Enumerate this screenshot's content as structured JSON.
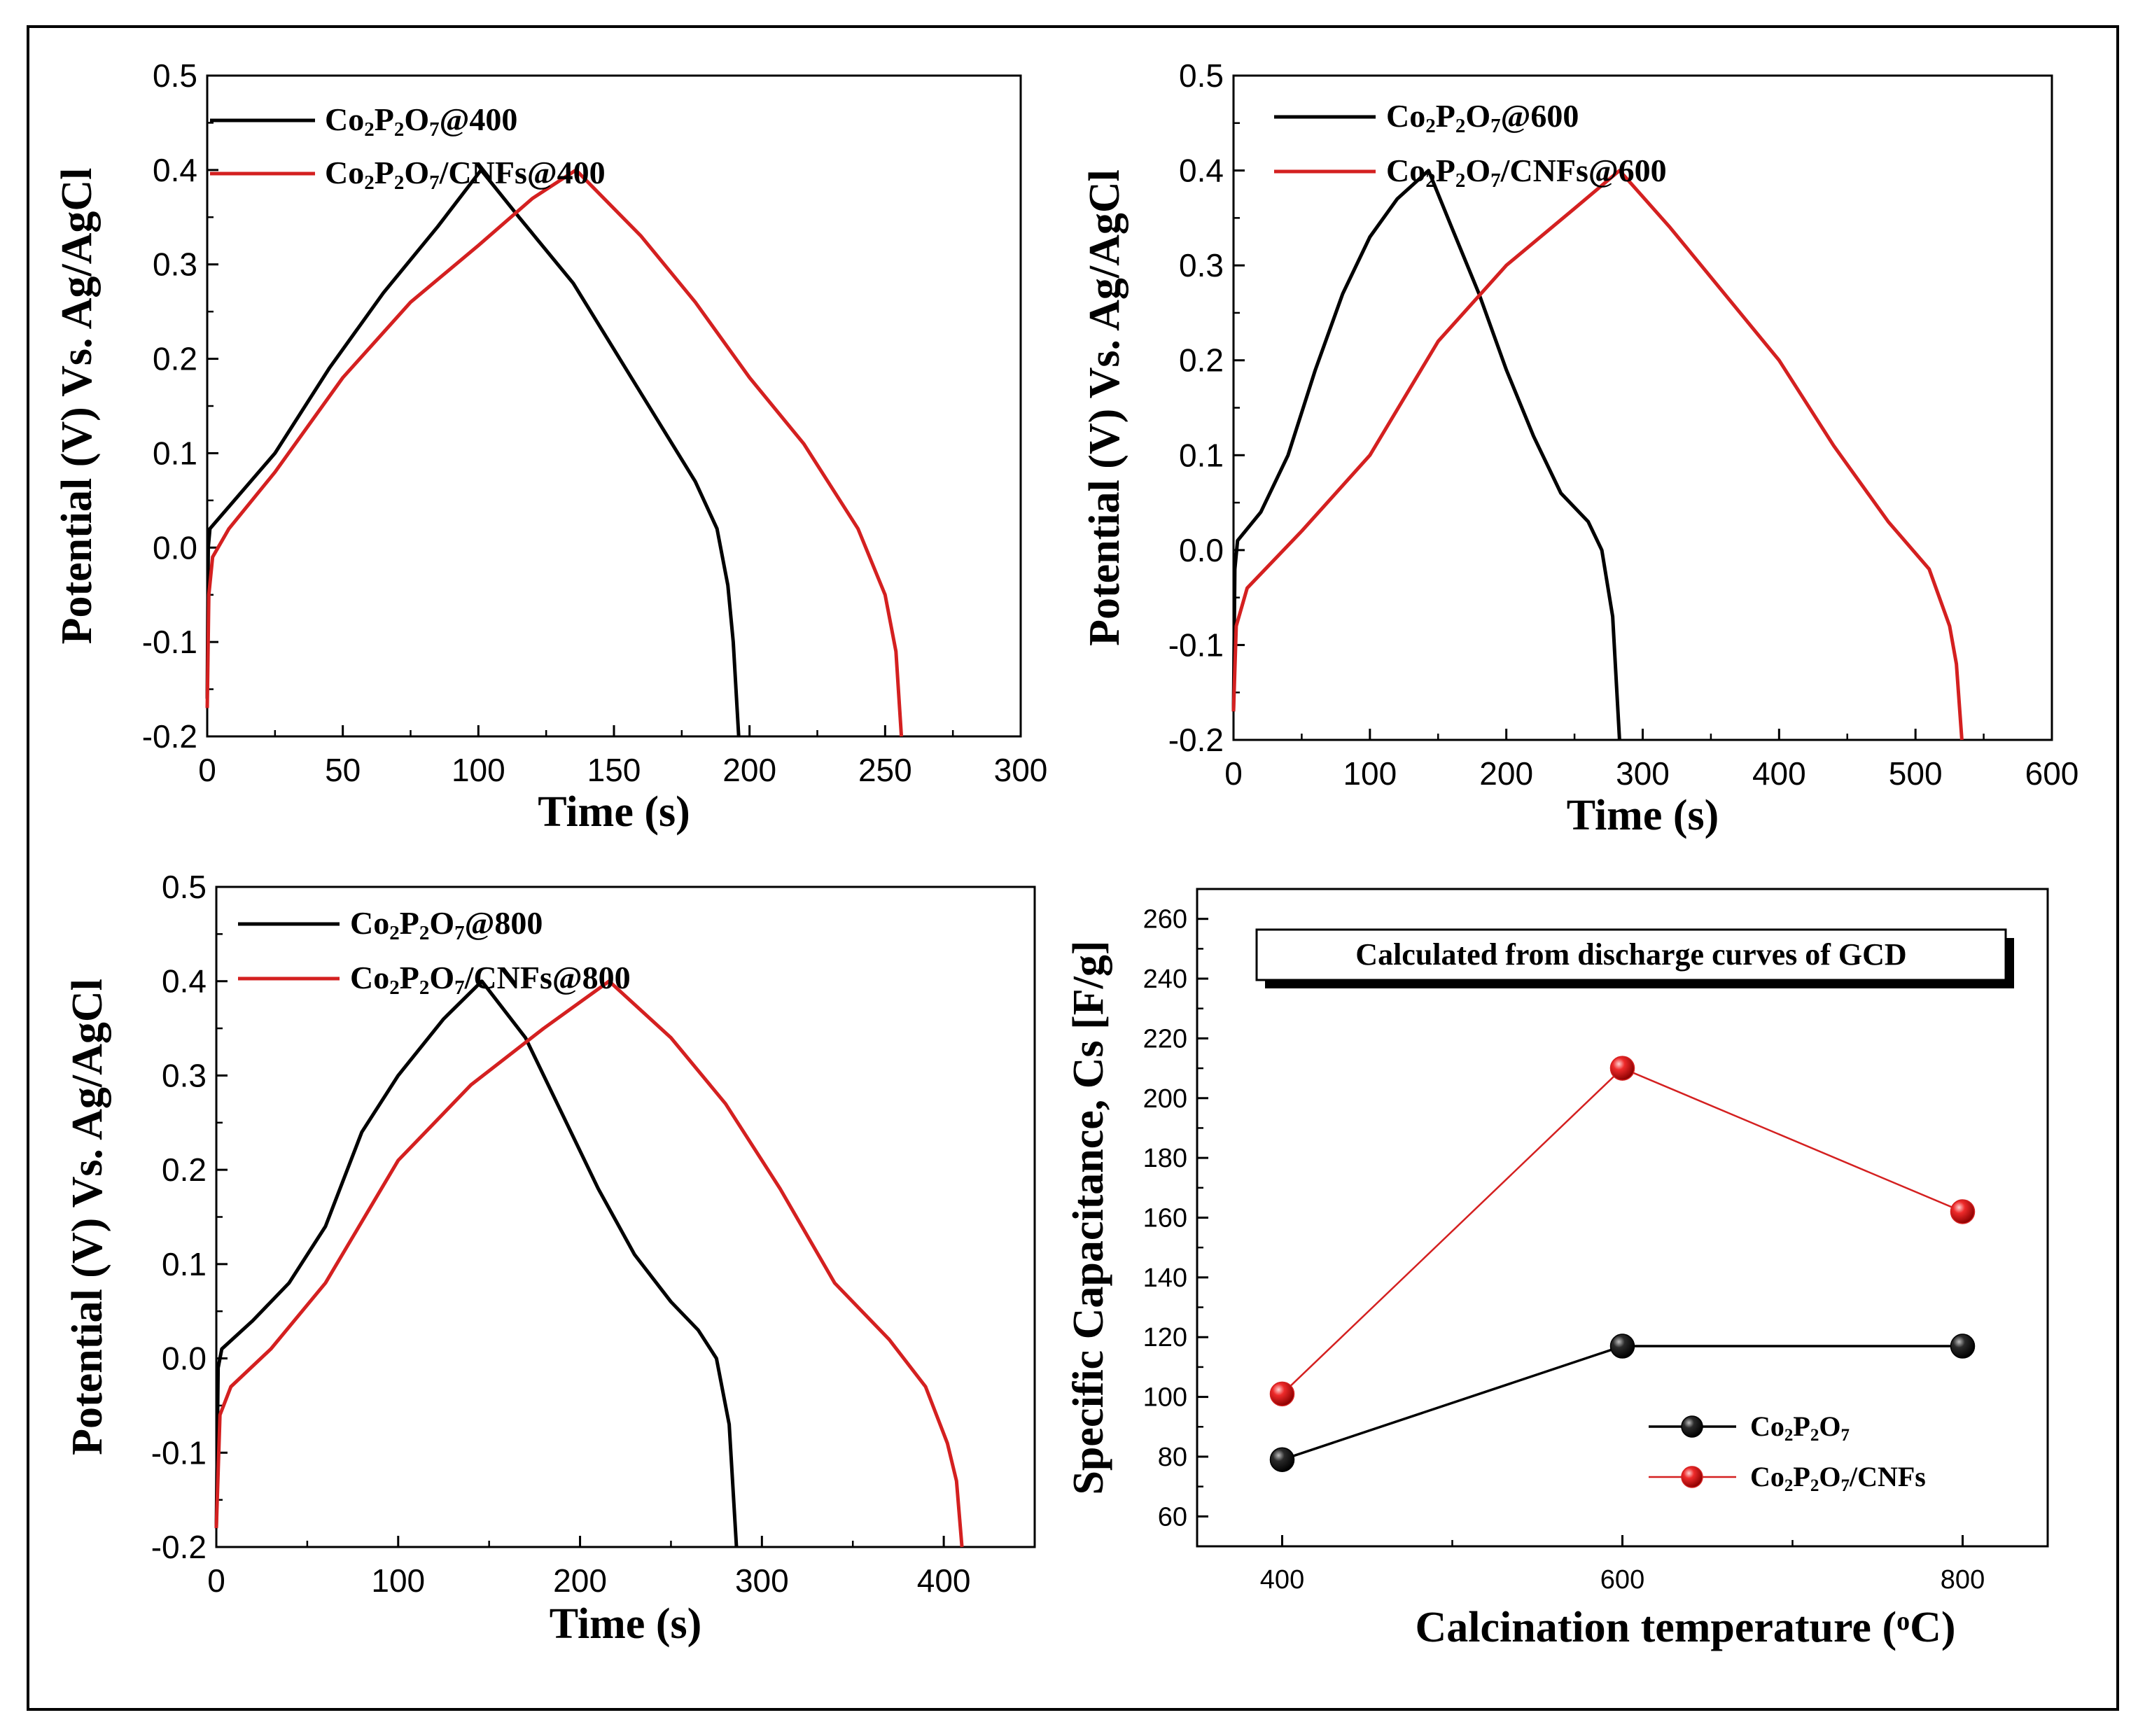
{
  "chart_data": [
    {
      "type": "line",
      "xlabel": "Time (s)",
      "ylabel": "Potential (V) Vs. Ag/AgCl",
      "xlim": [
        0,
        300
      ],
      "ylim": [
        -0.2,
        0.5
      ],
      "xticks": [
        0,
        50,
        100,
        150,
        200,
        250,
        300
      ],
      "yticks": [
        "-0.2",
        "-0.1",
        "0.0",
        "0.1",
        "0.2",
        "0.3",
        "0.4",
        "0.5"
      ],
      "legend_position": "top-left",
      "series": [
        {
          "name": "Co2P2O7@400",
          "label_parts": [
            [
              "Co",
              "n"
            ],
            [
              "2",
              "sub"
            ],
            [
              "P",
              "n"
            ],
            [
              "2",
              "sub"
            ],
            [
              "O",
              "n"
            ],
            [
              "7",
              "sub"
            ],
            [
              "@400",
              "n"
            ]
          ],
          "color": "#000000",
          "points": [
            [
              0,
              -0.16
            ],
            [
              0.4,
              0.0
            ],
            [
              1,
              0.02
            ],
            [
              10,
              0.05
            ],
            [
              25,
              0.1
            ],
            [
              45,
              0.19
            ],
            [
              65,
              0.27
            ],
            [
              85,
              0.34
            ],
            [
              101,
              0.4
            ],
            [
              115,
              0.35
            ],
            [
              135,
              0.28
            ],
            [
              150,
              0.21
            ],
            [
              165,
              0.14
            ],
            [
              180,
              0.07
            ],
            [
              188,
              0.02
            ],
            [
              192,
              -0.04
            ],
            [
              194,
              -0.1
            ],
            [
              196,
              -0.2
            ]
          ]
        },
        {
          "name": "Co2P2O7/CNFs@400",
          "label_parts": [
            [
              "Co",
              "n"
            ],
            [
              "2",
              "sub"
            ],
            [
              "P",
              "n"
            ],
            [
              "2",
              "sub"
            ],
            [
              "O",
              "n"
            ],
            [
              "7",
              "sub"
            ],
            [
              "/CNFs@400",
              "n"
            ]
          ],
          "color": "#D42020",
          "points": [
            [
              0,
              -0.17
            ],
            [
              0.6,
              -0.05
            ],
            [
              2,
              -0.01
            ],
            [
              8,
              0.02
            ],
            [
              25,
              0.08
            ],
            [
              50,
              0.18
            ],
            [
              75,
              0.26
            ],
            [
              100,
              0.32
            ],
            [
              120,
              0.37
            ],
            [
              136,
              0.4
            ],
            [
              160,
              0.33
            ],
            [
              180,
              0.26
            ],
            [
              200,
              0.18
            ],
            [
              220,
              0.11
            ],
            [
              240,
              0.02
            ],
            [
              250,
              -0.05
            ],
            [
              254,
              -0.11
            ],
            [
              256,
              -0.2
            ]
          ]
        }
      ]
    },
    {
      "type": "line",
      "xlabel": "Time (s)",
      "ylabel": "Potential (V) Vs. Ag/AgCl",
      "xlim": [
        0,
        600
      ],
      "ylim": [
        -0.2,
        0.5
      ],
      "xticks": [
        0,
        100,
        200,
        300,
        400,
        500,
        600
      ],
      "yticks": [
        "-0.2",
        "-0.1",
        "0.0",
        "0.1",
        "0.2",
        "0.3",
        "0.4",
        "0.5"
      ],
      "legend_position": "top-left",
      "series": [
        {
          "name": "Co2P2O7@600",
          "label_parts": [
            [
              "Co",
              "n"
            ],
            [
              "2",
              "sub"
            ],
            [
              "P",
              "n"
            ],
            [
              "2",
              "sub"
            ],
            [
              "O",
              "n"
            ],
            [
              "7",
              "sub"
            ],
            [
              "@600",
              "n"
            ]
          ],
          "color": "#000000",
          "points": [
            [
              0,
              -0.17
            ],
            [
              1,
              -0.02
            ],
            [
              3,
              0.01
            ],
            [
              20,
              0.04
            ],
            [
              40,
              0.1
            ],
            [
              60,
              0.19
            ],
            [
              80,
              0.27
            ],
            [
              100,
              0.33
            ],
            [
              120,
              0.37
            ],
            [
              143,
              0.4
            ],
            [
              160,
              0.34
            ],
            [
              180,
              0.27
            ],
            [
              200,
              0.19
            ],
            [
              220,
              0.12
            ],
            [
              240,
              0.06
            ],
            [
              260,
              0.03
            ],
            [
              270,
              0.0
            ],
            [
              278,
              -0.07
            ],
            [
              283,
              -0.2
            ]
          ]
        },
        {
          "name": "Co2P2O7/CNFs@600",
          "label_parts": [
            [
              "Co",
              "n"
            ],
            [
              "2",
              "sub"
            ],
            [
              "P",
              "n"
            ],
            [
              "2",
              "sub"
            ],
            [
              "O",
              "n"
            ],
            [
              "7",
              "sub"
            ],
            [
              "/CNFs@600",
              "n"
            ]
          ],
          "color": "#D42020",
          "points": [
            [
              0,
              -0.17
            ],
            [
              2,
              -0.08
            ],
            [
              10,
              -0.04
            ],
            [
              50,
              0.02
            ],
            [
              100,
              0.1
            ],
            [
              150,
              0.22
            ],
            [
              200,
              0.3
            ],
            [
              250,
              0.36
            ],
            [
              283,
              0.4
            ],
            [
              320,
              0.34
            ],
            [
              360,
              0.27
            ],
            [
              400,
              0.2
            ],
            [
              440,
              0.11
            ],
            [
              480,
              0.03
            ],
            [
              510,
              -0.02
            ],
            [
              525,
              -0.08
            ],
            [
              530,
              -0.12
            ],
            [
              534,
              -0.2
            ]
          ]
        }
      ]
    },
    {
      "type": "line",
      "xlabel": "Time (s)",
      "ylabel": "Potential (V) Vs. Ag/AgCl",
      "xlim": [
        0,
        450
      ],
      "ylim": [
        -0.2,
        0.5
      ],
      "xticks": [
        0,
        100,
        200,
        300,
        400
      ],
      "yticks": [
        "-0.2",
        "-0.1",
        "0.0",
        "0.1",
        "0.2",
        "0.3",
        "0.4",
        "0.5"
      ],
      "legend_position": "top-left",
      "series": [
        {
          "name": "Co2P2O7@800",
          "label_parts": [
            [
              "Co",
              "n"
            ],
            [
              "2",
              "sub"
            ],
            [
              "P",
              "n"
            ],
            [
              "2",
              "sub"
            ],
            [
              "O",
              "n"
            ],
            [
              "7",
              "sub"
            ],
            [
              "@800",
              "n"
            ]
          ],
          "color": "#000000",
          "points": [
            [
              0,
              -0.18
            ],
            [
              1,
              -0.01
            ],
            [
              3,
              0.01
            ],
            [
              20,
              0.04
            ],
            [
              40,
              0.08
            ],
            [
              60,
              0.14
            ],
            [
              80,
              0.24
            ],
            [
              100,
              0.3
            ],
            [
              125,
              0.36
            ],
            [
              146,
              0.4
            ],
            [
              170,
              0.34
            ],
            [
              190,
              0.26
            ],
            [
              210,
              0.18
            ],
            [
              230,
              0.11
            ],
            [
              250,
              0.06
            ],
            [
              265,
              0.03
            ],
            [
              275,
              0.0
            ],
            [
              282,
              -0.07
            ],
            [
              286,
              -0.2
            ]
          ]
        },
        {
          "name": "Co2P2O7/CNFs@800",
          "label_parts": [
            [
              "Co",
              "n"
            ],
            [
              "2",
              "sub"
            ],
            [
              "P",
              "n"
            ],
            [
              "2",
              "sub"
            ],
            [
              "O",
              "n"
            ],
            [
              "7",
              "sub"
            ],
            [
              "/CNFs@800",
              "n"
            ]
          ],
          "color": "#D42020",
          "points": [
            [
              0,
              -0.18
            ],
            [
              2,
              -0.06
            ],
            [
              8,
              -0.03
            ],
            [
              30,
              0.01
            ],
            [
              60,
              0.08
            ],
            [
              100,
              0.21
            ],
            [
              140,
              0.29
            ],
            [
              180,
              0.35
            ],
            [
              216,
              0.4
            ],
            [
              250,
              0.34
            ],
            [
              280,
              0.27
            ],
            [
              310,
              0.18
            ],
            [
              340,
              0.08
            ],
            [
              370,
              0.02
            ],
            [
              390,
              -0.03
            ],
            [
              402,
              -0.09
            ],
            [
              407,
              -0.13
            ],
            [
              410,
              -0.2
            ]
          ]
        }
      ]
    },
    {
      "type": "scatter",
      "xlabel": "Calcination temperature (oC)",
      "xlabel_parts": [
        [
          "Calcination temperature (",
          "n"
        ],
        [
          "o",
          "sup"
        ],
        [
          "C)",
          "n"
        ]
      ],
      "ylabel": "Specific Capacitance, Cs [F/g]",
      "xlim": [
        350,
        850
      ],
      "ylim": [
        50,
        270
      ],
      "xticks": [
        400,
        600,
        800
      ],
      "yticks": [
        "60",
        "80",
        "100",
        "120",
        "140",
        "160",
        "180",
        "200",
        "220",
        "240",
        "260"
      ],
      "annotation": "Calculated from discharge curves of GCD",
      "legend_position": "bottom-right",
      "x": [
        400,
        600,
        800
      ],
      "series": [
        {
          "name": "Co2P2O7",
          "label_parts": [
            [
              "Co",
              "n"
            ],
            [
              "2",
              "sub"
            ],
            [
              "P",
              "n"
            ],
            [
              "2",
              "sub"
            ],
            [
              "O",
              "n"
            ],
            [
              "7",
              "sub"
            ]
          ],
          "color": "#000000",
          "values": [
            79,
            117,
            117
          ]
        },
        {
          "name": "Co2P2O7/CNFs",
          "label_parts": [
            [
              "Co",
              "n"
            ],
            [
              "2",
              "sub"
            ],
            [
              "P",
              "n"
            ],
            [
              "2",
              "sub"
            ],
            [
              "O",
              "n"
            ],
            [
              "7",
              "sub"
            ],
            [
              "/CNFs",
              "n"
            ]
          ],
          "color": "#D42020",
          "values": [
            101,
            210,
            162
          ]
        }
      ]
    }
  ]
}
